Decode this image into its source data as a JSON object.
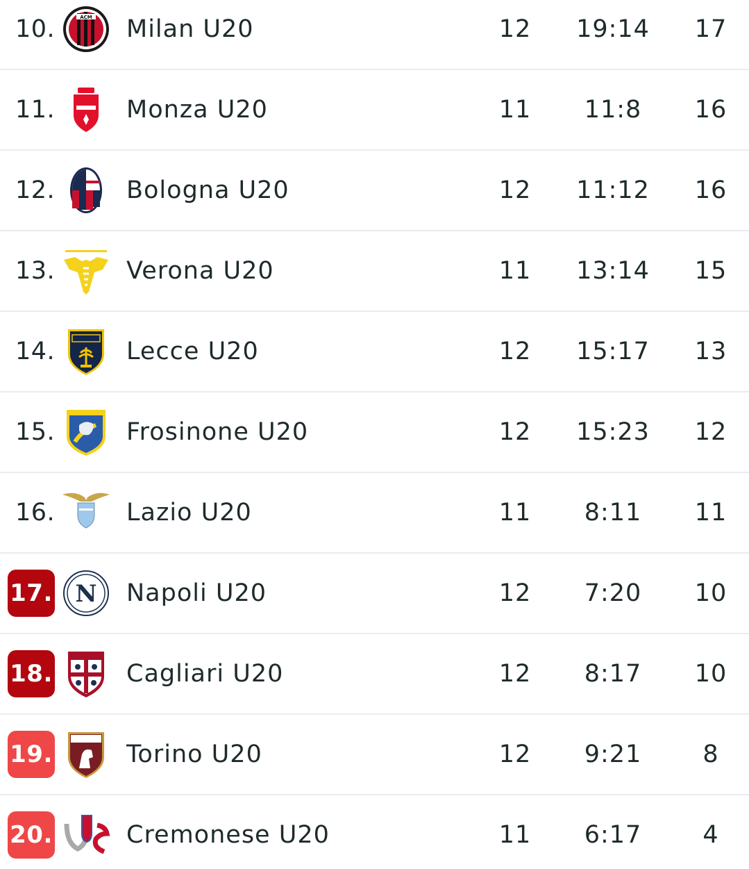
{
  "rows": [
    {
      "rank": "10.",
      "team": "Milan U20",
      "played": "12",
      "goals": "19:14",
      "points": "17",
      "logo": "milan-crest-icon",
      "badge": ""
    },
    {
      "rank": "11.",
      "team": "Monza U20",
      "played": "11",
      "goals": "11:8",
      "points": "16",
      "logo": "monza-crest-icon",
      "badge": ""
    },
    {
      "rank": "12.",
      "team": "Bologna U20",
      "played": "12",
      "goals": "11:12",
      "points": "16",
      "logo": "bologna-crest-icon",
      "badge": ""
    },
    {
      "rank": "13.",
      "team": "Verona U20",
      "played": "11",
      "goals": "13:14",
      "points": "15",
      "logo": "verona-crest-icon",
      "badge": ""
    },
    {
      "rank": "14.",
      "team": "Lecce U20",
      "played": "12",
      "goals": "15:17",
      "points": "13",
      "logo": "lecce-crest-icon",
      "badge": ""
    },
    {
      "rank": "15.",
      "team": "Frosinone U20",
      "played": "12",
      "goals": "15:23",
      "points": "12",
      "logo": "frosinone-crest-icon",
      "badge": ""
    },
    {
      "rank": "16.",
      "team": "Lazio U20",
      "played": "11",
      "goals": "8:11",
      "points": "11",
      "logo": "lazio-crest-icon",
      "badge": ""
    },
    {
      "rank": "17.",
      "team": "Napoli U20",
      "played": "12",
      "goals": "7:20",
      "points": "10",
      "logo": "napoli-crest-icon",
      "badge": "dark"
    },
    {
      "rank": "18.",
      "team": "Cagliari U20",
      "played": "12",
      "goals": "8:17",
      "points": "10",
      "logo": "cagliari-crest-icon",
      "badge": "dark"
    },
    {
      "rank": "19.",
      "team": "Torino U20",
      "played": "12",
      "goals": "9:21",
      "points": "8",
      "logo": "torino-crest-icon",
      "badge": "light"
    },
    {
      "rank": "20.",
      "team": "Cremonese U20",
      "played": "11",
      "goals": "6:17",
      "points": "4",
      "logo": "cremonese-crest-icon",
      "badge": "light"
    }
  ],
  "colors": {
    "relegation_dark": "#b3060f",
    "relegation_light": "#ef4647",
    "divider": "#e9ecee",
    "text": "#1e2a2c"
  }
}
